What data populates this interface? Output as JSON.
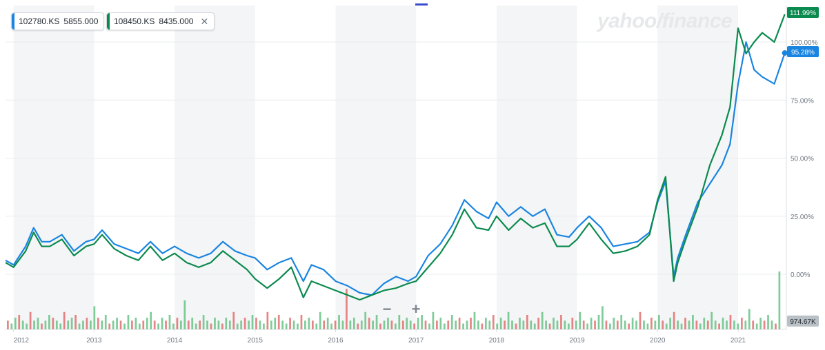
{
  "legend": {
    "series1": {
      "symbol": "102780.KS",
      "value": "5855.000",
      "color": "#1a85e1"
    },
    "series2": {
      "symbol": "108450.KS",
      "value": "8435.000",
      "color": "#0a8a4e"
    }
  },
  "logo": "yahoo/finance",
  "zoom": {
    "minus": "−",
    "plus": "+"
  },
  "badges": {
    "series2_last": "111.99%",
    "series1_last": "95.28%",
    "volume": "974.67K"
  },
  "chart_data": {
    "type": "line",
    "x_ticks": [
      "2012",
      "2013",
      "2014",
      "2015",
      "2016",
      "2017",
      "2018",
      "2019",
      "2020",
      "2021"
    ],
    "y_ticks": [
      "100.00%",
      "75.00%",
      "50.00%",
      "25.00%",
      "0.00%"
    ],
    "ylim": [
      -10,
      115
    ],
    "xlim": [
      2011.9,
      2021.6
    ],
    "series": [
      {
        "name": "102780.KS",
        "color": "#1a85e1",
        "x": [
          2011.9,
          2012.0,
          2012.15,
          2012.25,
          2012.35,
          2012.45,
          2012.6,
          2012.75,
          2012.9,
          2013.0,
          2013.1,
          2013.25,
          2013.4,
          2013.55,
          2013.7,
          2013.85,
          2014.0,
          2014.15,
          2014.3,
          2014.45,
          2014.6,
          2014.75,
          2014.9,
          2015.0,
          2015.15,
          2015.3,
          2015.45,
          2015.6,
          2015.7,
          2015.85,
          2016.0,
          2016.15,
          2016.3,
          2016.45,
          2016.6,
          2016.75,
          2016.9,
          2017.0,
          2017.15,
          2017.3,
          2017.45,
          2017.6,
          2017.75,
          2017.9,
          2018.0,
          2018.15,
          2018.3,
          2018.45,
          2018.6,
          2018.75,
          2018.9,
          2019.0,
          2019.15,
          2019.3,
          2019.45,
          2019.6,
          2019.75,
          2019.9,
          2020.0,
          2020.1,
          2020.2,
          2020.25,
          2020.35,
          2020.5,
          2020.65,
          2020.8,
          2020.9,
          2021.0,
          2021.1,
          2021.2,
          2021.3,
          2021.45,
          2021.58
        ],
        "y": [
          6,
          4,
          12,
          20,
          14,
          14,
          17,
          10,
          14,
          15,
          19,
          13,
          11,
          9,
          14,
          9,
          12,
          9,
          7,
          9,
          14,
          10,
          8,
          7,
          2,
          5,
          7,
          -3,
          4,
          2,
          -3,
          -5,
          -8,
          -9,
          -4,
          -1,
          -3,
          -1,
          8,
          13,
          21,
          32,
          27,
          24,
          31,
          25,
          29,
          25,
          28,
          17,
          16,
          20,
          25,
          20,
          12,
          13,
          14,
          18,
          31,
          40,
          -1,
          7,
          17,
          31,
          39,
          47,
          56,
          82,
          100,
          88,
          85,
          82,
          95.28
        ]
      },
      {
        "name": "108450.KS",
        "color": "#0a8a4e",
        "x": [
          2011.9,
          2012.0,
          2012.15,
          2012.25,
          2012.35,
          2012.45,
          2012.6,
          2012.75,
          2012.9,
          2013.0,
          2013.1,
          2013.25,
          2013.4,
          2013.55,
          2013.7,
          2013.85,
          2014.0,
          2014.15,
          2014.3,
          2014.45,
          2014.6,
          2014.75,
          2014.9,
          2015.0,
          2015.15,
          2015.3,
          2015.45,
          2015.6,
          2015.7,
          2015.85,
          2016.0,
          2016.15,
          2016.3,
          2016.45,
          2016.6,
          2016.75,
          2016.9,
          2017.0,
          2017.15,
          2017.3,
          2017.45,
          2017.6,
          2017.75,
          2017.9,
          2018.0,
          2018.15,
          2018.3,
          2018.45,
          2018.6,
          2018.75,
          2018.9,
          2019.0,
          2019.15,
          2019.3,
          2019.45,
          2019.6,
          2019.75,
          2019.9,
          2020.0,
          2020.1,
          2020.2,
          2020.25,
          2020.35,
          2020.5,
          2020.65,
          2020.8,
          2020.9,
          2021.0,
          2021.1,
          2021.2,
          2021.3,
          2021.45,
          2021.58
        ],
        "y": [
          5,
          3,
          10,
          18,
          12,
          12,
          15,
          8,
          12,
          13,
          17,
          11,
          8,
          6,
          12,
          6,
          9,
          5,
          3,
          5,
          10,
          6,
          2,
          -2,
          -6,
          -2,
          3,
          -10,
          -3,
          -5,
          -7,
          -9,
          -11,
          -9,
          -7,
          -6,
          -4,
          -3,
          3,
          9,
          17,
          28,
          20,
          19,
          25,
          19,
          24,
          20,
          22,
          12,
          12,
          15,
          22,
          15,
          9,
          10,
          12,
          17,
          32,
          42,
          -3,
          5,
          15,
          29,
          47,
          60,
          72,
          106,
          95,
          100,
          104,
          100,
          111.99
        ]
      }
    ],
    "volume": [
      3,
      2,
      4,
      5,
      3,
      2,
      6,
      3,
      4,
      2,
      3,
      5,
      4,
      3,
      2,
      6,
      3,
      4,
      5,
      2,
      3,
      4,
      3,
      8,
      4,
      3,
      5,
      2,
      3,
      4,
      3,
      2,
      5,
      3,
      4,
      2,
      3,
      4,
      6,
      3,
      2,
      4,
      3,
      5,
      2,
      4,
      3,
      10,
      3,
      4,
      2,
      3,
      5,
      3,
      2,
      4,
      3,
      2,
      4,
      3,
      6,
      2,
      3,
      4,
      3,
      5,
      4,
      3,
      2,
      6,
      3,
      4,
      5,
      3,
      2,
      4,
      3,
      2,
      5,
      3,
      4,
      3,
      2,
      6,
      3,
      4,
      2,
      3,
      5,
      3,
      14,
      3,
      4,
      2,
      3,
      6,
      4,
      3,
      5,
      2,
      3,
      4,
      3,
      2,
      5,
      3,
      4,
      3,
      2,
      4,
      5,
      3,
      2,
      6,
      3,
      4,
      2,
      3,
      5,
      3,
      4,
      2,
      3,
      4,
      6,
      3,
      2,
      4,
      3,
      5,
      2,
      4,
      3,
      6,
      3,
      2,
      4,
      3,
      5,
      3,
      2,
      4,
      6,
      3,
      2,
      4,
      3,
      5,
      3,
      2,
      4,
      3,
      6,
      3,
      2,
      4,
      3,
      5,
      8,
      3,
      2,
      4,
      3,
      5,
      3,
      2,
      4,
      3,
      6,
      3,
      2,
      4,
      3,
      5,
      3,
      2,
      4,
      6,
      3,
      2,
      4,
      3,
      5,
      3,
      2,
      4,
      3,
      6,
      3,
      2,
      4,
      3,
      5,
      3,
      2,
      4,
      3,
      7,
      3,
      2,
      4,
      3,
      5,
      3,
      2,
      20
    ]
  }
}
